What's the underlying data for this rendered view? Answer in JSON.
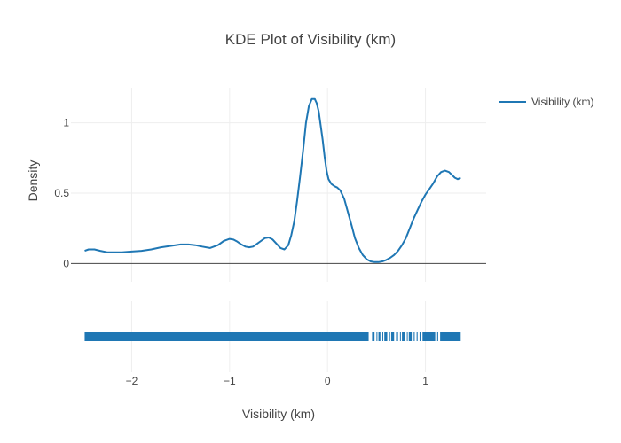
{
  "chart_data": {
    "type": "line",
    "title": "KDE Plot of Visibility (km)",
    "xlabel": "Visibility (km)",
    "ylabel": "Density",
    "xlim": [
      -2.62,
      1.62
    ],
    "ylim": [
      -0.13,
      1.25
    ],
    "x_ticks": [
      -2,
      -1,
      0,
      1
    ],
    "x_tick_labels": [
      "−2",
      "−1",
      "0",
      "1"
    ],
    "y_ticks": [
      0,
      0.5,
      1
    ],
    "y_tick_labels": [
      "0",
      "0.5",
      "1"
    ],
    "grid": true,
    "legend_position": "top-right",
    "series": [
      {
        "name": "Visibility (km)",
        "color": "#1f77b4",
        "x": [
          -2.48,
          -2.44,
          -2.38,
          -2.32,
          -2.25,
          -2.18,
          -2.1,
          -2.0,
          -1.9,
          -1.8,
          -1.7,
          -1.6,
          -1.5,
          -1.42,
          -1.35,
          -1.28,
          -1.2,
          -1.12,
          -1.06,
          -1.0,
          -0.96,
          -0.92,
          -0.88,
          -0.84,
          -0.8,
          -0.76,
          -0.72,
          -0.68,
          -0.64,
          -0.6,
          -0.56,
          -0.52,
          -0.48,
          -0.44,
          -0.4,
          -0.37,
          -0.34,
          -0.31,
          -0.28,
          -0.25,
          -0.22,
          -0.19,
          -0.16,
          -0.13,
          -0.11,
          -0.09,
          -0.07,
          -0.05,
          -0.03,
          -0.01,
          0.01,
          0.04,
          0.07,
          0.1,
          0.13,
          0.17,
          0.21,
          0.25,
          0.28,
          0.32,
          0.36,
          0.4,
          0.44,
          0.48,
          0.52,
          0.56,
          0.6,
          0.64,
          0.68,
          0.72,
          0.76,
          0.8,
          0.84,
          0.88,
          0.92,
          0.96,
          1.0,
          1.04,
          1.08,
          1.12,
          1.16,
          1.2,
          1.24,
          1.27,
          1.3,
          1.33,
          1.36
        ],
        "y": [
          0.09,
          0.1,
          0.1,
          0.09,
          0.08,
          0.08,
          0.08,
          0.085,
          0.09,
          0.1,
          0.115,
          0.125,
          0.135,
          0.135,
          0.13,
          0.12,
          0.11,
          0.13,
          0.16,
          0.175,
          0.17,
          0.155,
          0.135,
          0.12,
          0.115,
          0.12,
          0.14,
          0.16,
          0.18,
          0.185,
          0.17,
          0.14,
          0.11,
          0.1,
          0.13,
          0.2,
          0.3,
          0.45,
          0.62,
          0.8,
          1.0,
          1.12,
          1.17,
          1.17,
          1.14,
          1.08,
          0.98,
          0.88,
          0.76,
          0.66,
          0.6,
          0.565,
          0.55,
          0.54,
          0.52,
          0.46,
          0.36,
          0.26,
          0.18,
          0.11,
          0.06,
          0.03,
          0.015,
          0.01,
          0.01,
          0.015,
          0.025,
          0.04,
          0.06,
          0.09,
          0.13,
          0.18,
          0.25,
          0.32,
          0.38,
          0.44,
          0.49,
          0.53,
          0.57,
          0.62,
          0.65,
          0.66,
          0.65,
          0.63,
          0.61,
          0.6,
          0.61
        ]
      }
    ],
    "rug": {
      "segments": [
        [
          -2.48,
          0.42
        ],
        [
          0.455,
          0.48
        ],
        [
          0.5,
          0.5
        ],
        [
          0.52,
          0.54
        ],
        [
          0.56,
          0.565
        ],
        [
          0.58,
          0.61
        ],
        [
          0.63,
          0.635
        ],
        [
          0.65,
          0.68
        ],
        [
          0.7,
          0.72
        ],
        [
          0.74,
          0.745
        ],
        [
          0.76,
          0.79
        ],
        [
          0.81,
          0.815
        ],
        [
          0.83,
          0.86
        ],
        [
          0.88,
          0.89
        ],
        [
          0.91,
          0.92
        ],
        [
          0.94,
          0.95
        ],
        [
          0.97,
          1.1
        ],
        [
          1.12,
          1.13
        ],
        [
          1.15,
          1.36
        ]
      ]
    }
  }
}
